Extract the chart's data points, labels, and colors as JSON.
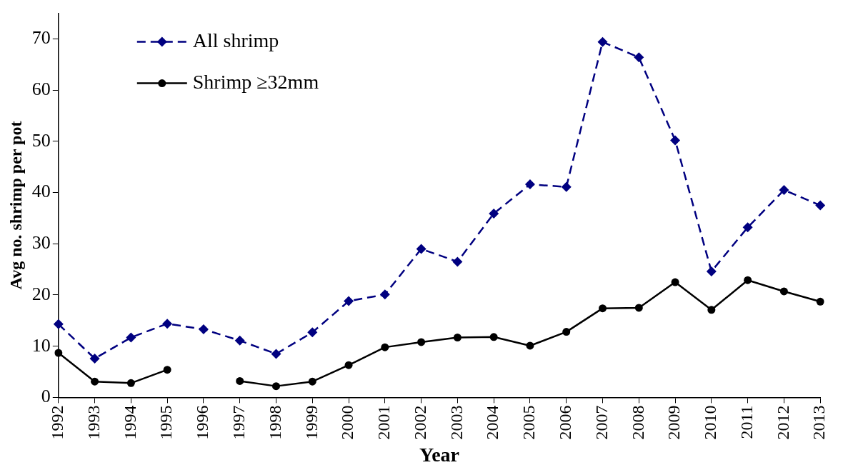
{
  "chart_data": {
    "type": "line",
    "xlabel": "Year",
    "ylabel": "Avg no. shrimp per pot",
    "categories": [
      "1992",
      "1993",
      "1994",
      "1995",
      "1996",
      "1997",
      "1998",
      "1999",
      "2000",
      "2001",
      "2002",
      "2003",
      "2004",
      "2005",
      "2006",
      "2007",
      "2008",
      "2009",
      "2010",
      "2011",
      "2012",
      "2013"
    ],
    "series": [
      {
        "name": "All shrimp",
        "color": "#000080",
        "marker": "diamond",
        "line_style": "dashed",
        "values": [
          14.3,
          7.6,
          11.7,
          14.4,
          13.3,
          11.1,
          8.5,
          12.7,
          18.8,
          20.1,
          29.0,
          26.5,
          35.9,
          41.6,
          41.1,
          69.4,
          66.4,
          50.2,
          24.6,
          33.2,
          40.5,
          37.5
        ]
      },
      {
        "name": "Shrimp ≥32mm",
        "color": "#000000",
        "marker": "circle",
        "line_style": "solid",
        "values": [
          8.7,
          3.1,
          2.8,
          5.4,
          null,
          3.2,
          2.2,
          3.1,
          6.3,
          9.8,
          10.8,
          11.7,
          11.8,
          10.1,
          12.8,
          17.4,
          17.5,
          22.5,
          17.1,
          22.9,
          20.7,
          18.7
        ]
      }
    ],
    "ylim": [
      0,
      75
    ],
    "yticks": [
      0,
      10,
      20,
      30,
      40,
      50,
      60,
      70
    ],
    "grid": false,
    "legend": "top left"
  }
}
